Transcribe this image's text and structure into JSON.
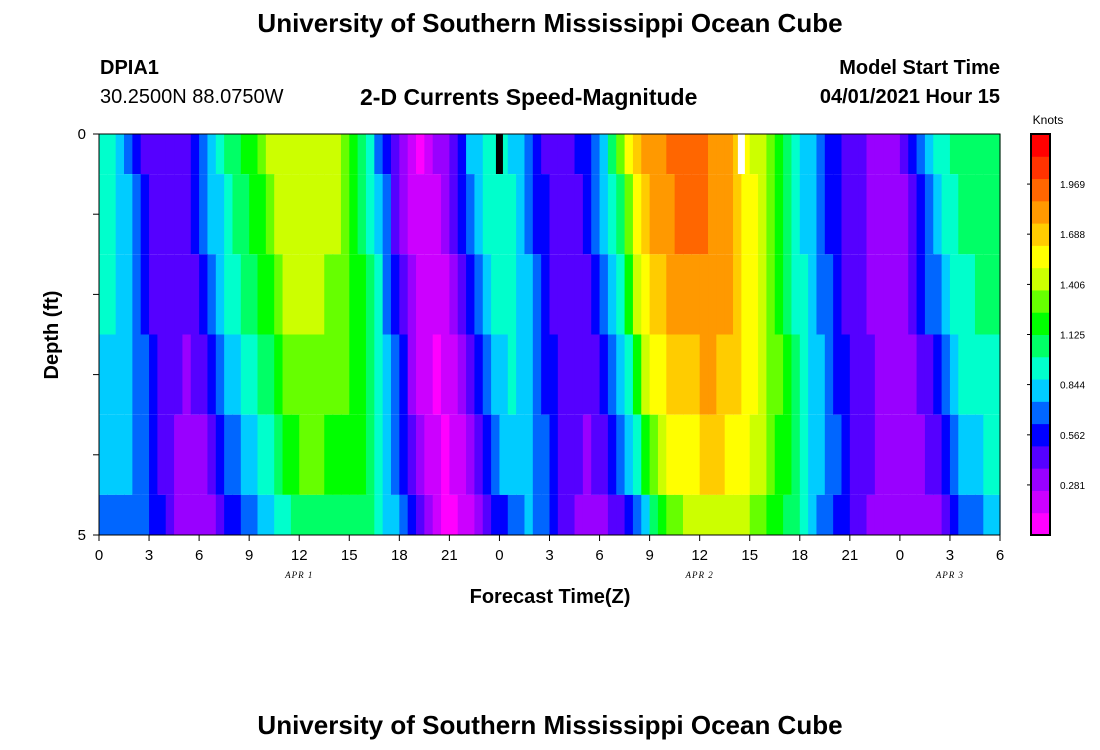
{
  "header": {
    "title_top": "University of Southern Mississippi Ocean Cube",
    "title_bottom": "University of Southern Mississippi Ocean Cube",
    "station_id": "DPIA1",
    "coordinates": "30.2500N  88.0750W",
    "product": "2-D Currents Speed-Magnitude",
    "model_label": "Model Start Time",
    "model_time": "04/01/2021 Hour 15"
  },
  "colors": {
    "colormap": [
      "#ff00ff",
      "#cc00ff",
      "#9900ff",
      "#5500ff",
      "#0000ff",
      "#0066ff",
      "#00ccff",
      "#00ffcc",
      "#00ff66",
      "#00ff00",
      "#66ff00",
      "#ccff00",
      "#ffff00",
      "#ffcc00",
      "#ff9900",
      "#ff6600",
      "#ff3300",
      "#ff0000"
    ],
    "now_marker": "#000000",
    "start_marker": "#ffffff"
  },
  "chart_data": {
    "type": "heatmap",
    "title": "2-D Currents Speed-Magnitude",
    "xlabel": "Forecast Time(Z)",
    "ylabel": "Depth (ft)",
    "x_tick_labels": [
      "0",
      "3",
      "6",
      "9",
      "12",
      "15",
      "18",
      "21",
      "0",
      "3",
      "6",
      "9",
      "12",
      "15",
      "18",
      "21",
      "0",
      "3",
      "6"
    ],
    "date_labels": [
      {
        "label": "APR 1",
        "hour": 12
      },
      {
        "label": "APR 2",
        "hour": 36
      },
      {
        "label": "APR 3",
        "hour": 51
      }
    ],
    "y_tick_labels": [
      "0",
      "5"
    ],
    "x_range_hours": [
      0,
      54
    ],
    "y_range_ft": [
      0,
      5
    ],
    "depth_bins": 5,
    "colorbar": {
      "label": "Knots",
      "range": [
        0,
        2.25
      ],
      "ticks": [
        "0.281",
        "0.562",
        "0.844",
        "1.125",
        "1.406",
        "1.688",
        "1.969"
      ]
    },
    "surface_speed_knots": [
      0.95,
      0.9,
      0.82,
      0.72,
      0.55,
      0.42,
      0.38,
      0.37,
      0.36,
      0.4,
      0.55,
      0.72,
      0.85,
      0.95,
      1.02,
      1.1,
      1.2,
      1.32,
      1.45,
      1.5,
      1.52,
      1.5,
      1.48,
      1.46,
      1.45,
      1.4,
      1.3,
      1.15,
      1.0,
      0.8,
      0.6,
      0.4,
      0.22,
      0.1,
      0.06,
      0.12,
      0.25,
      0.4,
      0.55,
      0.72,
      0.85,
      0.95,
      1.0,
      0.9,
      0.8,
      0.7,
      0.55,
      0.45,
      0.4,
      0.38,
      0.42,
      0.52,
      0.65,
      0.8,
      1.0,
      1.3,
      1.6,
      1.78,
      1.85,
      1.9,
      1.95,
      1.98,
      2.0,
      2.0,
      1.95,
      1.9,
      1.85,
      1.75,
      1.65,
      1.5,
      1.4,
      1.25,
      1.1,
      0.95,
      0.85,
      0.75,
      0.65,
      0.55,
      0.45,
      0.4,
      0.35,
      0.32,
      0.3,
      0.28,
      0.3,
      0.4,
      0.55,
      0.72,
      0.85,
      0.95,
      1.0,
      1.05,
      1.05,
      1.08,
      1.08,
      1.08
    ],
    "depth_factors": [
      1.0,
      0.98,
      0.95,
      0.9,
      0.84,
      0.74
    ],
    "depth_shift_hours": [
      0.0,
      0.3,
      0.6,
      1.0,
      1.4,
      1.8
    ],
    "markers": [
      {
        "name": "current-time",
        "hour": 24,
        "color": "#000000"
      },
      {
        "name": "model-start",
        "hour": 38.5,
        "color": "#ffffff"
      }
    ]
  }
}
